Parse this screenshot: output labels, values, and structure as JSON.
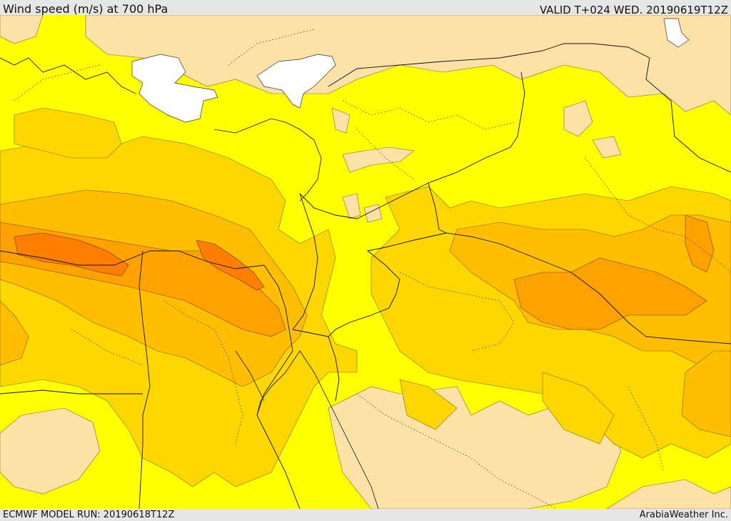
{
  "header": {
    "title": "Wind speed (m/s) at 700 hPa",
    "valid": "VALID T+024 WED. 20190619T12Z"
  },
  "footer": {
    "model_run": "ECMWF MODEL RUN: 20190618T12Z",
    "credit": "ArabiaWeather Inc."
  },
  "map": {
    "colors": {
      "sea": "#ffffff",
      "calm": "#fde2a8",
      "yellow": "#ffff00",
      "gold": "#ffd700",
      "amber": "#ffbf00",
      "orange": "#ffa200",
      "dark_orange": "#ff7f00"
    }
  }
}
